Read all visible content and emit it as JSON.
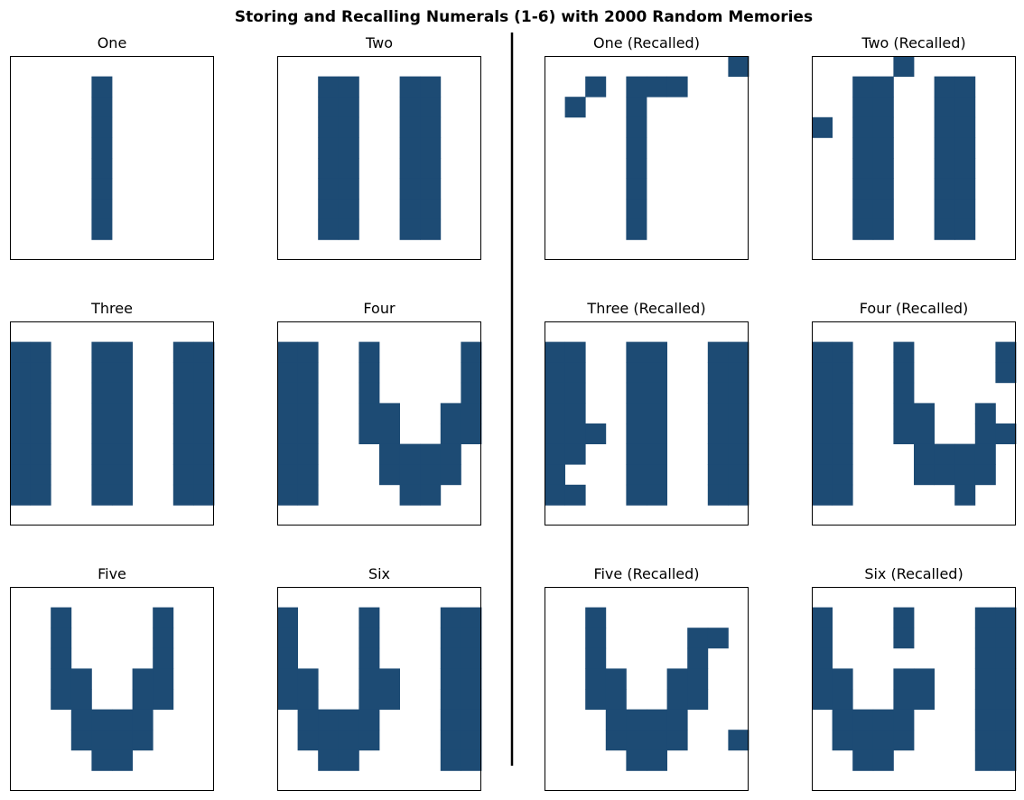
{
  "title": "Storing and Recalling Numerals (1-6) with 2000 Random Memories",
  "colors": {
    "filled": "#1d4b74",
    "empty": "#ffffff",
    "frame": "#000000",
    "divider": "#000000"
  },
  "chart_data": [
    {
      "type": "heatmap",
      "title": "One",
      "grid": [
        "0000000000",
        "0000200000",
        "0000200000",
        "0000200000",
        "0000200000",
        "0000200000",
        "0000200000",
        "0000200000",
        "0000200000",
        "0000000000"
      ]
    },
    {
      "type": "heatmap",
      "title": "Two",
      "grid": [
        "0000000000",
        "0022002200",
        "0022002200",
        "0022002200",
        "0022002200",
        "0022002200",
        "0022002200",
        "0022002200",
        "0022002200",
        "0000000000"
      ]
    },
    {
      "type": "heatmap",
      "title": "One (Recalled)",
      "grid": [
        "0000000002",
        "0020222000",
        "0200200000",
        "0000200000",
        "0000200000",
        "0000200000",
        "0000200000",
        "0000200000",
        "0000200000",
        "0000000000"
      ]
    },
    {
      "type": "heatmap",
      "title": "Two (Recalled)",
      "grid": [
        "0000200000",
        "0022002200",
        "0022002200",
        "2022002200",
        "0022002200",
        "0022002200",
        "0022002200",
        "0022002200",
        "0022002200",
        "0000000000"
      ]
    },
    {
      "type": "heatmap",
      "title": "Three",
      "grid": [
        "0000000000",
        "2200220022",
        "2200220022",
        "2200220022",
        "2200220022",
        "2200220022",
        "2200220022",
        "2200220022",
        "2200220022",
        "0000000000"
      ]
    },
    {
      "type": "heatmap",
      "title": "Four",
      "grid": [
        "0000000000",
        "2200200002",
        "2200200002",
        "2200200002",
        "2200220022",
        "2200220022",
        "2200022220",
        "2200022220",
        "2200002200",
        "0000000000"
      ]
    },
    {
      "type": "heatmap",
      "title": "Three (Recalled)",
      "grid": [
        "0000000000",
        "2200220022",
        "2200220022",
        "2200220022",
        "2200220022",
        "2220220022",
        "2200220022",
        "2000220022",
        "2200220022",
        "0000000000"
      ]
    },
    {
      "type": "heatmap",
      "title": "Four (Recalled)",
      "grid": [
        "0000000000",
        "2200200002",
        "2200200002",
        "2200200000",
        "2200220020",
        "2200220022",
        "2200022220",
        "2200022220",
        "2200000200",
        "0000000000"
      ]
    },
    {
      "type": "heatmap",
      "title": "Five",
      "grid": [
        "0000000000",
        "0020000200",
        "0020000200",
        "0020000200",
        "0022002200",
        "0022002200",
        "0002222000",
        "0002222000",
        "0000220000",
        "0000000000"
      ]
    },
    {
      "type": "heatmap",
      "title": "Six",
      "grid": [
        "0000000000",
        "2000200022",
        "2000200022",
        "2000200022",
        "2200220022",
        "2200220022",
        "0222200022",
        "0222200022",
        "0022000022",
        "0000000000"
      ]
    },
    {
      "type": "heatmap",
      "title": "Five (Recalled)",
      "grid": [
        "0000000000",
        "0020000000",
        "0020000220",
        "0020000200",
        "0022002200",
        "0022002200",
        "0002222000",
        "0002222002",
        "0000220000",
        "0000000000"
      ]
    },
    {
      "type": "heatmap",
      "title": "Six (Recalled)",
      "grid": [
        "0000000000",
        "2000200022",
        "2000200022",
        "2000000022",
        "2200220022",
        "2200220022",
        "0222200022",
        "0222200022",
        "0022000022",
        "0000000000"
      ]
    }
  ]
}
